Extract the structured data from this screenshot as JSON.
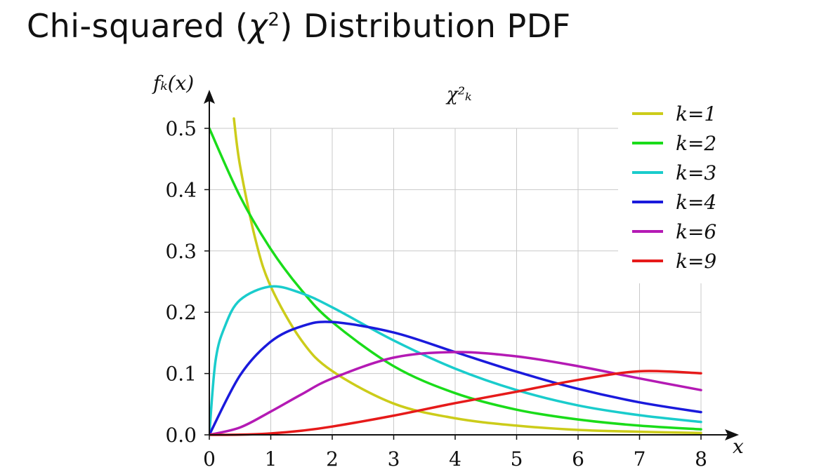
{
  "title": {
    "prefix": "Chi-squared (",
    "symbol": "χ",
    "power": "2",
    "suffix": ") Distribution PDF"
  },
  "chart_data": {
    "type": "line",
    "subtitle": "χ²ₖ",
    "xlabel": "x",
    "ylabel": "fₖ(x)",
    "xlim": [
      0,
      8
    ],
    "ylim": [
      0,
      0.5
    ],
    "xticks": [
      "0",
      "1",
      "2",
      "3",
      "4",
      "5",
      "6",
      "7",
      "8"
    ],
    "yticks": [
      "0.0",
      "0.1",
      "0.2",
      "0.3",
      "0.4",
      "0.5"
    ],
    "grid": true,
    "legend_position": "top-right",
    "series": [
      {
        "name": "k=1",
        "k": 1,
        "color": "#cccc1a",
        "x": [
          0.4,
          0.5,
          0.75,
          1,
          1.5,
          2,
          3,
          4,
          5,
          6,
          7,
          8
        ],
        "y": [
          0.516,
          0.439,
          0.319,
          0.242,
          0.154,
          0.104,
          0.051,
          0.027,
          0.015,
          0.008,
          0.005,
          0.003
        ]
      },
      {
        "name": "k=2",
        "k": 2,
        "color": "#1adc1a",
        "x": [
          0,
          0.5,
          1,
          1.5,
          2,
          3,
          4,
          5,
          6,
          7,
          8
        ],
        "y": [
          0.5,
          0.389,
          0.303,
          0.236,
          0.184,
          0.112,
          0.068,
          0.041,
          0.025,
          0.015,
          0.009
        ]
      },
      {
        "name": "k=3",
        "k": 3,
        "color": "#1acccc",
        "x": [
          0,
          0.1,
          0.25,
          0.5,
          1,
          1.5,
          2,
          3,
          4,
          5,
          6,
          7,
          8
        ],
        "y": [
          0,
          0.12,
          0.176,
          0.22,
          0.242,
          0.231,
          0.208,
          0.154,
          0.108,
          0.073,
          0.048,
          0.032,
          0.021
        ]
      },
      {
        "name": "k=4",
        "k": 4,
        "color": "#1a1adc",
        "x": [
          0,
          0.5,
          1,
          1.5,
          2,
          3,
          4,
          5,
          6,
          7,
          8
        ],
        "y": [
          0,
          0.097,
          0.152,
          0.177,
          0.184,
          0.167,
          0.135,
          0.103,
          0.075,
          0.053,
          0.037
        ]
      },
      {
        "name": "k=6",
        "k": 6,
        "color": "#b41ab4",
        "x": [
          0,
          0.5,
          1,
          1.5,
          2,
          3,
          4,
          5,
          6,
          7,
          8
        ],
        "y": [
          0,
          0.012,
          0.038,
          0.066,
          0.092,
          0.126,
          0.135,
          0.128,
          0.112,
          0.092,
          0.073
        ]
      },
      {
        "name": "k=9",
        "k": 9,
        "color": "#e61a1a",
        "x": [
          0,
          0.5,
          1,
          1.5,
          2,
          3,
          4,
          5,
          6,
          7,
          8
        ],
        "y": [
          0,
          0.0003,
          0.0023,
          0.0067,
          0.0135,
          0.0313,
          0.0517,
          0.0704,
          0.0896,
          0.1037,
          0.1004
        ]
      }
    ]
  }
}
